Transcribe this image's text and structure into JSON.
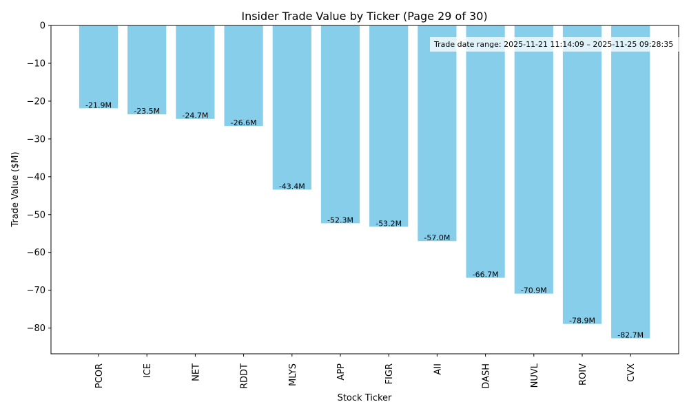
{
  "chart_data": {
    "type": "bar",
    "title": "Insider Trade Value by Ticker (Page 29 of 30)",
    "xlabel": "Stock Ticker",
    "ylabel": "Trade Value ($M)",
    "categories": [
      "PCOR",
      "ICE",
      "NET",
      "RDDT",
      "MLYS",
      "APP",
      "FIGR",
      "AII",
      "DASH",
      "NUVL",
      "ROIV",
      "CVX"
    ],
    "values": [
      -21.9,
      -23.5,
      -24.7,
      -26.6,
      -43.4,
      -52.3,
      -53.2,
      -57.0,
      -66.7,
      -70.9,
      -78.9,
      -82.7
    ],
    "data_labels": [
      "-21.9M",
      "-23.5M",
      "-24.7M",
      "-26.6M",
      "-43.4M",
      "-52.3M",
      "-53.2M",
      "-57.0M",
      "-66.7M",
      "-70.9M",
      "-78.9M",
      "-82.7M"
    ],
    "yticks": [
      0,
      -10,
      -20,
      -30,
      -40,
      -50,
      -60,
      -70,
      -80
    ],
    "ytick_labels": [
      "0",
      "−10",
      "−20",
      "−30",
      "−40",
      "−50",
      "−60",
      "−70",
      "−80"
    ],
    "ylim": [
      -86.8,
      0
    ],
    "grid": false,
    "bar_color": "#87ceeb",
    "annotation": "Trade date range: 2025-11-21 11:14:09 – 2025-11-25 09:28:35",
    "annotation_placement": "top-right"
  }
}
